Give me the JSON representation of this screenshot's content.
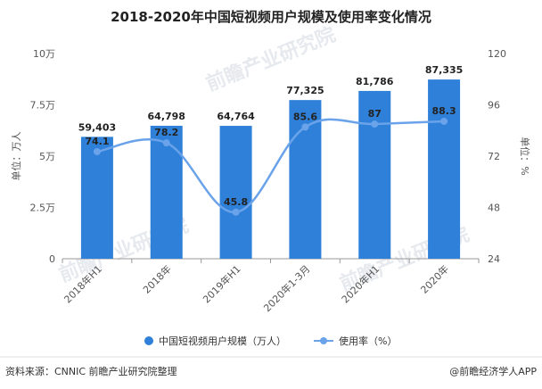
{
  "chart_data": {
    "type": "bar",
    "title": "2018-2020年中国短视频用户规模及使用率变化情况",
    "categories": [
      "2018年H1",
      "2018年",
      "2019年H1",
      "2020年1-3月",
      "2020年H1",
      "2020年"
    ],
    "series": [
      {
        "name": "中国短视频用户规模（万人）",
        "type": "bar",
        "axis": "left",
        "color": "#2f80d9",
        "values": [
          59403,
          64798,
          64764,
          77325,
          81786,
          87335
        ],
        "labels": [
          "59,403",
          "64,798",
          "64,764",
          "77,325",
          "81,786",
          "87,335"
        ]
      },
      {
        "name": "使用率（%）",
        "type": "line",
        "axis": "right",
        "color": "#6aa3ea",
        "values": [
          74.1,
          78.2,
          45.8,
          85.6,
          87,
          88.3
        ],
        "labels": [
          "74.1",
          "78.2",
          "45.8",
          "85.6",
          "87",
          "88.3"
        ]
      }
    ],
    "y_left": {
      "label": "单位：万人",
      "min": 0,
      "max": 100000,
      "ticks": [
        0,
        25000,
        50000,
        75000,
        100000
      ],
      "tick_labels": [
        "0",
        "2.5万",
        "5万",
        "7.5万",
        "10万"
      ]
    },
    "y_right": {
      "label": "单位：%",
      "min": 24,
      "max": 120,
      "ticks": [
        24,
        48,
        72,
        96,
        120
      ],
      "tick_labels": [
        "24",
        "48",
        "72",
        "96",
        "120"
      ]
    },
    "grid": false,
    "legend": "bottom"
  },
  "watermark": {
    "text": "前瞻产业研究院"
  },
  "footer": {
    "source": "资料来源：CNNIC 前瞻产业研究院整理",
    "brand": "@前瞻经济学人APP"
  }
}
